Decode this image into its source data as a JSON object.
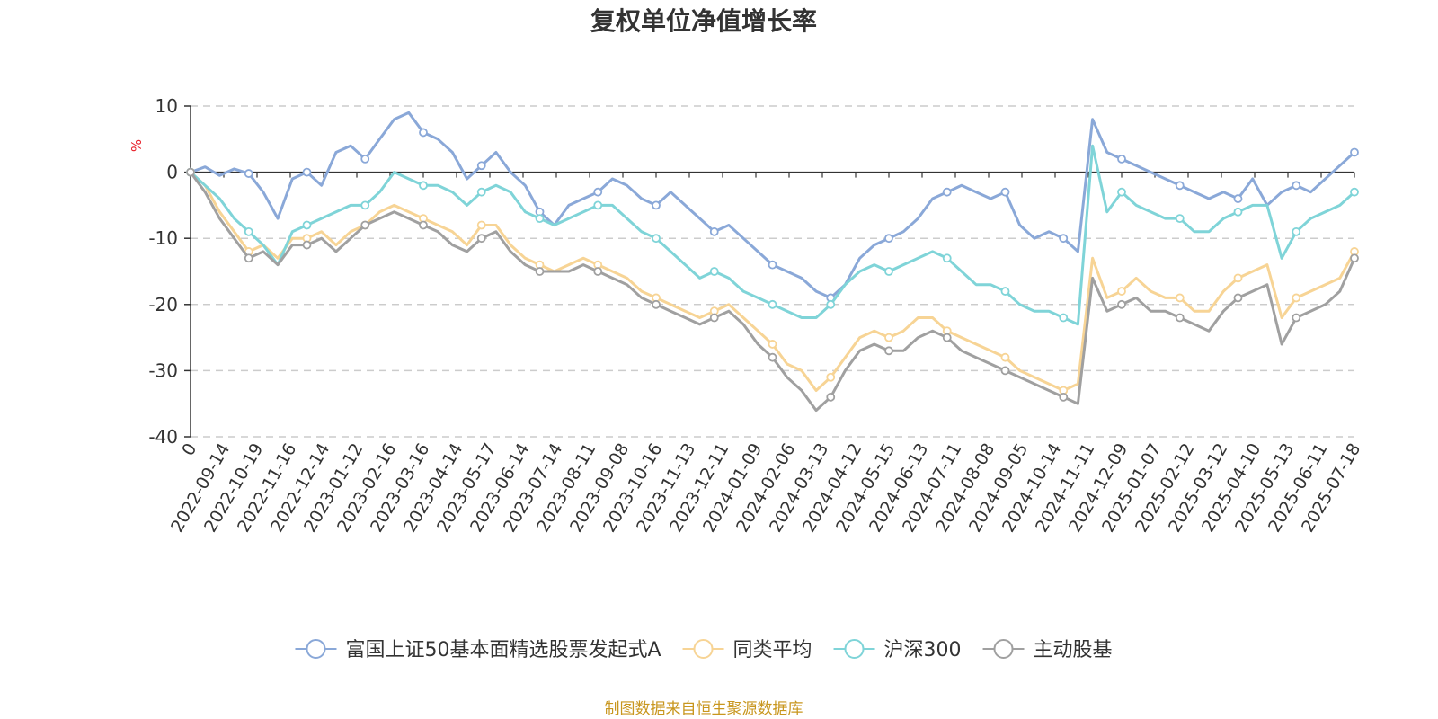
{
  "chart_data": {
    "type": "line",
    "title": "复权单位净值增长率",
    "ylabel": "%",
    "ylim": [
      -40,
      10
    ],
    "yticks": [
      "10",
      "0",
      "-10",
      "-20",
      "-30",
      "-40"
    ],
    "grid": true,
    "legend_position": "bottom",
    "source": "制图数据来自恒生聚源数据库",
    "x_ticks": [
      "0",
      "2022-09-14",
      "2022-10-19",
      "2022-11-16",
      "2022-12-14",
      "2023-01-12",
      "2023-02-16",
      "2023-03-16",
      "2023-04-14",
      "2023-05-17",
      "2023-06-14",
      "2023-07-14",
      "2023-08-11",
      "2023-09-08",
      "2023-10-16",
      "2023-11-13",
      "2023-12-11",
      "2024-01-09",
      "2024-02-06",
      "2024-03-13",
      "2024-04-12",
      "2024-05-15",
      "2024-06-13",
      "2024-07-11",
      "2024-08-08",
      "2024-09-05",
      "2024-10-14",
      "2024-11-11",
      "2024-12-09",
      "2025-01-07",
      "2025-02-12",
      "2025-03-12",
      "2025-04-10",
      "2025-05-13",
      "2025-06-11",
      "2025-07-18"
    ],
    "series": [
      {
        "name": "富国上证50基本面精选股票发起式A",
        "color": "#8aa8d8",
        "values": [
          0,
          0.8,
          -0.5,
          0.5,
          -0.2,
          -3,
          -7,
          -1,
          0,
          -2,
          3,
          4,
          2,
          5,
          8,
          9,
          6,
          5,
          3,
          -1,
          1,
          3,
          0,
          -2,
          -6,
          -8,
          -5,
          -4,
          -3,
          -1,
          -2,
          -4,
          -5,
          -3,
          -5,
          -7,
          -9,
          -8,
          -10,
          -12,
          -14,
          -15,
          -16,
          -18,
          -19,
          -17,
          -13,
          -11,
          -10,
          -9,
          -7,
          -4,
          -3,
          -2,
          -3,
          -4,
          -3,
          -8,
          -10,
          -9,
          -10,
          -12,
          8,
          3,
          2,
          1,
          0,
          -1,
          -2,
          -3,
          -4,
          -3,
          -4,
          -1,
          -5,
          -3,
          -2,
          -3,
          -1,
          1,
          3
        ]
      },
      {
        "name": "同类平均",
        "color": "#f7d495",
        "values": [
          0,
          -2,
          -6,
          -9,
          -12,
          -11,
          -13,
          -10,
          -10,
          -9,
          -11,
          -9,
          -8,
          -6,
          -5,
          -6,
          -7,
          -8,
          -9,
          -11,
          -8,
          -8,
          -11,
          -13,
          -14,
          -15,
          -14,
          -13,
          -14,
          -15,
          -16,
          -18,
          -19,
          -20,
          -21,
          -22,
          -21,
          -20,
          -22,
          -24,
          -26,
          -29,
          -30,
          -33,
          -31,
          -28,
          -25,
          -24,
          -25,
          -24,
          -22,
          -22,
          -24,
          -25,
          -26,
          -27,
          -28,
          -30,
          -31,
          -32,
          -33,
          -32,
          -13,
          -19,
          -18,
          -16,
          -18,
          -19,
          -19,
          -21,
          -21,
          -18,
          -16,
          -15,
          -14,
          -22,
          -19,
          -18,
          -17,
          -16,
          -12
        ]
      },
      {
        "name": "沪深300",
        "color": "#7fd4d8",
        "values": [
          0,
          -2,
          -4,
          -7,
          -9,
          -11,
          -14,
          -9,
          -8,
          -7,
          -6,
          -5,
          -5,
          -3,
          0,
          -1,
          -2,
          -2,
          -3,
          -5,
          -3,
          -2,
          -3,
          -6,
          -7,
          -8,
          -7,
          -6,
          -5,
          -5,
          -7,
          -9,
          -10,
          -12,
          -14,
          -16,
          -15,
          -16,
          -18,
          -19,
          -20,
          -21,
          -22,
          -22,
          -20,
          -17,
          -15,
          -14,
          -15,
          -14,
          -13,
          -12,
          -13,
          -15,
          -17,
          -17,
          -18,
          -20,
          -21,
          -21,
          -22,
          -23,
          4,
          -6,
          -3,
          -5,
          -6,
          -7,
          -7,
          -9,
          -9,
          -7,
          -6,
          -5,
          -5,
          -13,
          -9,
          -7,
          -6,
          -5,
          -3
        ]
      },
      {
        "name": "主动股基",
        "color": "#a0a0a0",
        "values": [
          0,
          -3,
          -7,
          -10,
          -13,
          -12,
          -14,
          -11,
          -11,
          -10,
          -12,
          -10,
          -8,
          -7,
          -6,
          -7,
          -8,
          -9,
          -11,
          -12,
          -10,
          -9,
          -12,
          -14,
          -15,
          -15,
          -15,
          -14,
          -15,
          -16,
          -17,
          -19,
          -20,
          -21,
          -22,
          -23,
          -22,
          -21,
          -23,
          -26,
          -28,
          -31,
          -33,
          -36,
          -34,
          -30,
          -27,
          -26,
          -27,
          -27,
          -25,
          -24,
          -25,
          -27,
          -28,
          -29,
          -30,
          -31,
          -32,
          -33,
          -34,
          -35,
          -16,
          -21,
          -20,
          -19,
          -21,
          -21,
          -22,
          -23,
          -24,
          -21,
          -19,
          -18,
          -17,
          -26,
          -22,
          -21,
          -20,
          -18,
          -13
        ]
      }
    ]
  }
}
